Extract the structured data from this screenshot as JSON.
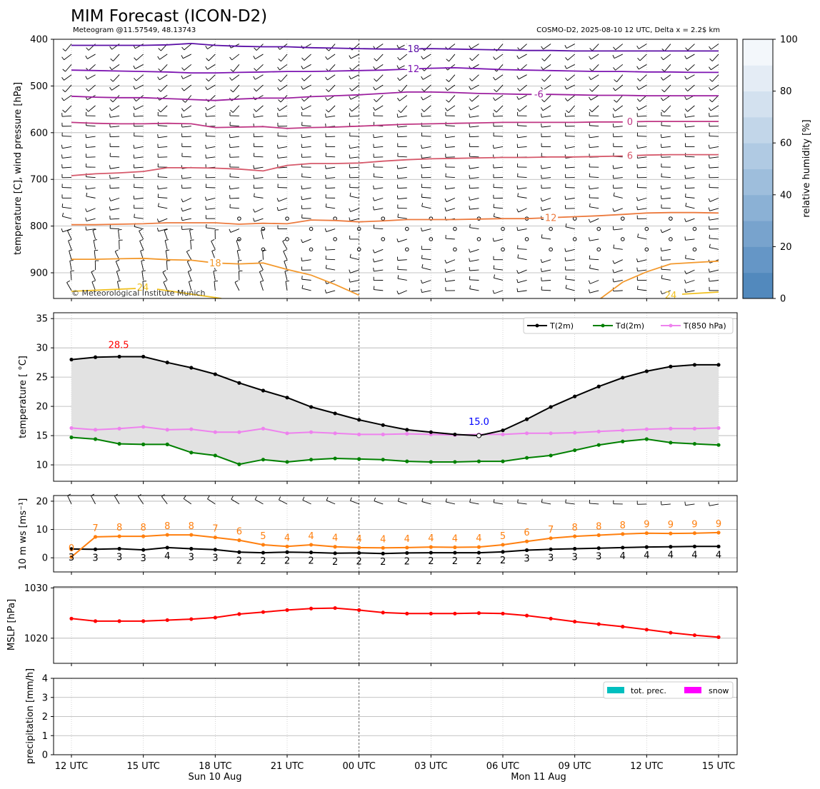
{
  "header": {
    "title": "MIM Forecast (ICON-D2)",
    "subtitle_left": "Meteogram @11.57549, 48.13743",
    "subtitle_right": "COSMO-D2, 2025-08-10 12 UTC, Delta x = 2.2$ km",
    "copyright": "© Meteorological Institute Munich"
  },
  "time_axis": {
    "tick_labels": [
      "12 UTC",
      "15 UTC",
      "18 UTC",
      "21 UTC",
      "00 UTC",
      "03 UTC",
      "06 UTC",
      "09 UTC",
      "12 UTC",
      "15 UTC"
    ],
    "day_labels": [
      "Sun 10 Aug",
      "Mon 11 Aug"
    ]
  },
  "chart_data": [
    {
      "panel": "upper_air",
      "type": "line",
      "ylabel": "temperature [C], wind pressure [hPa]",
      "yticks": [
        "400",
        "500",
        "600",
        "700",
        "800",
        "900"
      ],
      "ylim": [
        955,
        400
      ],
      "y_inverted": true,
      "colorbar": {
        "label": "relative humidity [%]",
        "ticks": [
          "0",
          "20",
          "40",
          "60",
          "80",
          "100"
        ],
        "colors": [
          "#5289bd",
          "#6596c6",
          "#78a3cd",
          "#8bb1d5",
          "#9ebedc",
          "#b0cae3",
          "#c2d6e9",
          "#d3e1ef",
          "#e4ecf5",
          "#f3f7fb"
        ]
      },
      "isotherms": [
        {
          "label": "-18",
          "color": "#5b0fa6",
          "label_hour": 14.2,
          "values": [
            413,
            413,
            413,
            413,
            412,
            409,
            413,
            415,
            416,
            416,
            418,
            419,
            420,
            421,
            421,
            420,
            421,
            422,
            423,
            424,
            424,
            425,
            425,
            425,
            425,
            425,
            425,
            425
          ]
        },
        {
          "label": "-12",
          "color": "#7c14b1",
          "label_hour": 14.2,
          "values": [
            466,
            467,
            468,
            469,
            470,
            472,
            472,
            471,
            470,
            469,
            469,
            468,
            467,
            466,
            464,
            462,
            461,
            463,
            465,
            466,
            467,
            468,
            469,
            469,
            470,
            470,
            471,
            471
          ]
        },
        {
          "label": "-6",
          "color": "#9c1f9f",
          "label_hour": 19.5,
          "values": [
            522,
            524,
            525,
            525,
            527,
            529,
            531,
            528,
            526,
            526,
            523,
            521,
            519,
            516,
            513,
            513,
            514,
            516,
            517,
            518,
            518,
            519,
            520,
            520,
            521,
            521,
            521,
            521
          ]
        },
        {
          "label": "0",
          "color": "#bf3683",
          "label_hour": 23.3,
          "values": [
            578,
            580,
            581,
            581,
            580,
            581,
            589,
            588,
            587,
            591,
            589,
            588,
            586,
            584,
            582,
            581,
            580,
            579,
            578,
            578,
            578,
            578,
            577,
            577,
            576,
            576,
            576,
            576
          ]
        },
        {
          "label": "6",
          "color": "#d6596b",
          "label_hour": 23.3,
          "values": [
            692,
            688,
            686,
            683,
            675,
            675,
            676,
            678,
            682,
            670,
            666,
            666,
            665,
            661,
            658,
            656,
            655,
            654,
            653,
            653,
            652,
            652,
            651,
            650,
            648,
            647,
            647,
            647
          ]
        },
        {
          "label": "12",
          "color": "#ec7a3e",
          "label_hour": 20.0,
          "values": [
            797,
            797,
            796,
            795,
            793,
            793,
            793,
            796,
            794,
            795,
            787,
            788,
            791,
            789,
            786,
            786,
            786,
            785,
            784,
            784,
            782,
            780,
            778,
            775,
            772,
            771,
            771,
            772
          ]
        },
        {
          "label": "18",
          "color": "#f3992d",
          "label_hour": 6.0,
          "values": [
            871,
            871,
            870,
            869,
            872,
            873,
            879,
            881,
            879,
            893,
            905,
            925,
            948,
            null,
            null,
            null,
            null,
            null,
            null,
            null,
            null,
            null,
            958,
            920,
            898,
            881,
            878,
            875
          ]
        }
      ],
      "isotherm_24_label": "24"
    },
    {
      "panel": "temperature",
      "type": "line",
      "ylabel": "temperature [$^\\circ$C]",
      "yticks": [
        "10",
        "15",
        "20",
        "25",
        "30",
        "35"
      ],
      "ylim": [
        7.2,
        36
      ],
      "legend_position": "top-right",
      "max_label": "28.5",
      "min_label": "15.0",
      "series": [
        {
          "name": "T(2m)",
          "color": "#000000",
          "values": [
            28.0,
            28.4,
            28.5,
            28.5,
            27.5,
            26.6,
            25.5,
            24.0,
            22.7,
            21.5,
            19.9,
            18.8,
            17.7,
            16.8,
            16.0,
            15.6,
            15.2,
            15.0,
            15.9,
            17.8,
            19.9,
            21.7,
            23.4,
            24.9,
            26.0,
            26.8,
            27.1,
            27.1
          ]
        },
        {
          "name": "Td(2m)",
          "color": "#008000",
          "values": [
            14.7,
            14.4,
            13.6,
            13.5,
            13.5,
            12.1,
            11.6,
            10.1,
            10.9,
            10.5,
            10.9,
            11.1,
            11.0,
            10.9,
            10.6,
            10.5,
            10.5,
            10.6,
            10.6,
            11.2,
            11.6,
            12.5,
            13.4,
            14.0,
            14.4,
            13.8,
            13.6,
            13.4
          ]
        },
        {
          "name": "T(850 hPa)",
          "color": "#ee82ee",
          "values": [
            16.3,
            16.0,
            16.2,
            16.5,
            16.0,
            16.1,
            15.6,
            15.6,
            16.2,
            15.4,
            15.6,
            15.4,
            15.2,
            15.2,
            15.3,
            15.2,
            15.1,
            15.2,
            15.2,
            15.4,
            15.4,
            15.5,
            15.7,
            15.9,
            16.1,
            16.2,
            16.2,
            16.3
          ]
        }
      ]
    },
    {
      "panel": "wind",
      "type": "line",
      "ylabel": "10 m ws [ms$^{-1}$]",
      "yticks": [
        "0",
        "10",
        "20"
      ],
      "ylim": [
        -5,
        22
      ],
      "series": [
        {
          "name": "mean",
          "color": "#000000",
          "values": [
            3.1,
            3.0,
            3.2,
            2.8,
            3.6,
            3.2,
            2.9,
            2.0,
            1.8,
            2.0,
            1.9,
            1.6,
            1.7,
            1.5,
            1.7,
            1.8,
            1.8,
            1.8,
            2.1,
            2.7,
            3.0,
            3.2,
            3.4,
            3.6,
            3.8,
            3.9,
            4.0,
            4.0
          ]
        },
        {
          "name": "gust",
          "color": "#ff7f0e",
          "values": [
            0.3,
            7.4,
            7.6,
            7.6,
            8.1,
            8.1,
            7.2,
            6.2,
            4.6,
            4.0,
            4.6,
            3.9,
            3.6,
            3.5,
            3.6,
            3.8,
            3.7,
            3.8,
            4.6,
            5.8,
            6.9,
            7.6,
            8.0,
            8.4,
            8.7,
            8.6,
            8.7,
            8.9
          ]
        }
      ],
      "mean_labels": [
        "3",
        "3",
        "3",
        "3",
        "4",
        "3",
        "3",
        "2",
        "2",
        "2",
        "2",
        "2",
        "2",
        "2",
        "2",
        "2",
        "2",
        "2",
        "2",
        "3",
        "3",
        "3",
        "3",
        "4",
        "4",
        "4",
        "4",
        "4"
      ],
      "gust_labels": [
        "0",
        "7",
        "8",
        "8",
        "8",
        "8",
        "7",
        "6",
        "5",
        "4",
        "4",
        "4",
        "4",
        "4",
        "4",
        "4",
        "4",
        "4",
        "5",
        "6",
        "7",
        "8",
        "8",
        "8",
        "9",
        "9",
        "9",
        "9"
      ]
    },
    {
      "panel": "mslp",
      "type": "line",
      "ylabel": "MSLP [hPa]",
      "yticks": [
        "1020",
        "1030"
      ],
      "ylim": [
        1015,
        1030.2
      ],
      "series": [
        {
          "name": "MSLP",
          "color": "#ff0000",
          "values": [
            1023.9,
            1023.4,
            1023.4,
            1023.4,
            1023.6,
            1023.8,
            1024.1,
            1024.8,
            1025.2,
            1025.6,
            1025.9,
            1026.0,
            1025.6,
            1025.1,
            1024.9,
            1024.9,
            1024.9,
            1025.0,
            1024.9,
            1024.5,
            1023.9,
            1023.3,
            1022.8,
            1022.3,
            1021.7,
            1021.1,
            1020.6,
            1020.2
          ]
        }
      ]
    },
    {
      "panel": "precipitation",
      "type": "bar",
      "ylabel": "precipitation [mm/h]",
      "yticks": [
        "0",
        "1",
        "2",
        "3",
        "4"
      ],
      "ylim": [
        0,
        4
      ],
      "legend_position": "top-right",
      "series": [
        {
          "name": "tot. prec.",
          "color": "#00bfbf",
          "values": [
            0,
            0,
            0,
            0,
            0,
            0,
            0,
            0,
            0,
            0,
            0,
            0,
            0,
            0,
            0,
            0,
            0,
            0,
            0,
            0,
            0,
            0,
            0,
            0,
            0,
            0,
            0,
            0
          ]
        },
        {
          "name": "snow",
          "color": "#ff00ff",
          "values": [
            0,
            0,
            0,
            0,
            0,
            0,
            0,
            0,
            0,
            0,
            0,
            0,
            0,
            0,
            0,
            0,
            0,
            0,
            0,
            0,
            0,
            0,
            0,
            0,
            0,
            0,
            0,
            0
          ]
        }
      ]
    }
  ]
}
